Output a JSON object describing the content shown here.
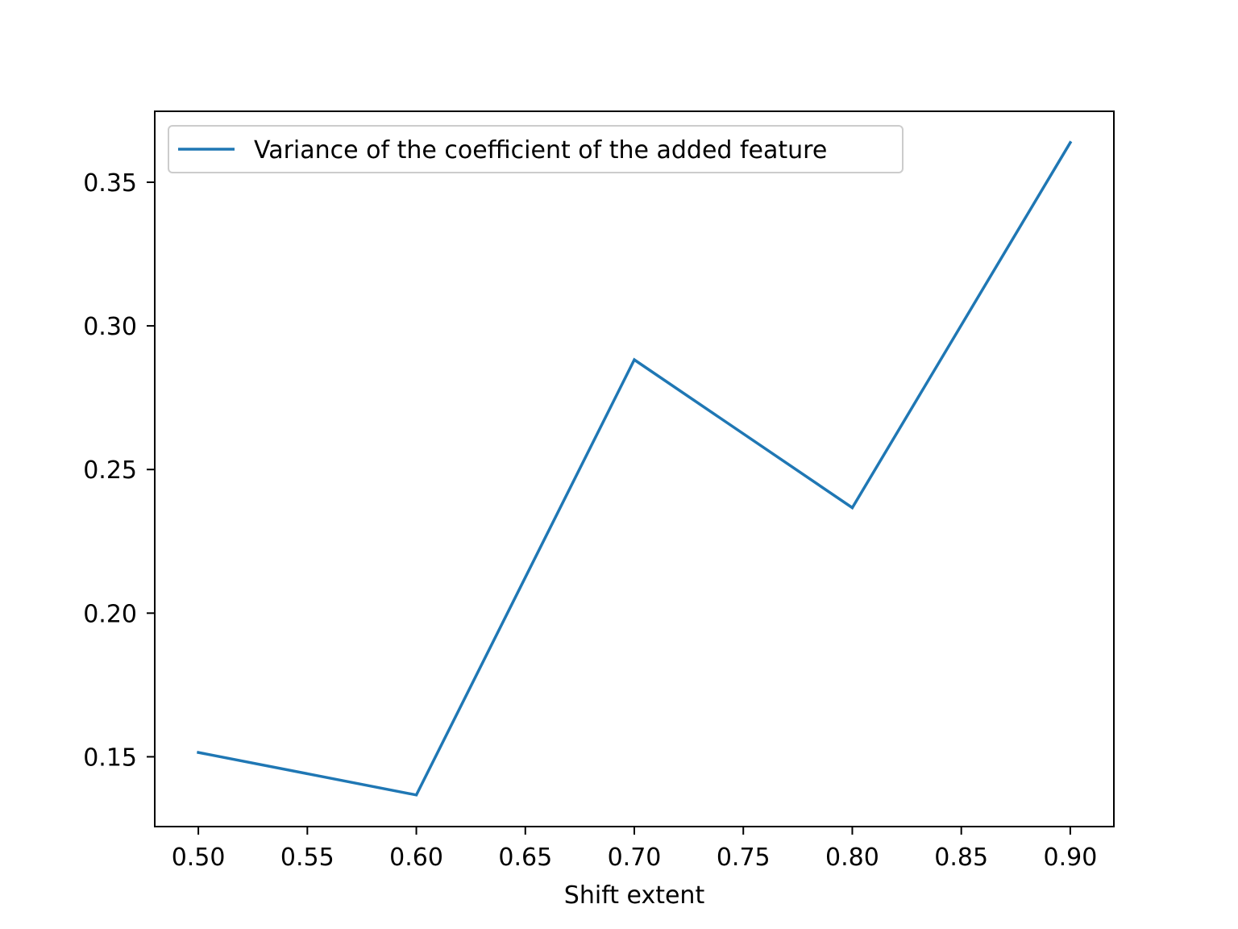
{
  "chart_data": {
    "type": "line",
    "title": "",
    "xlabel": "Shift extent",
    "ylabel": "",
    "x": [
      0.5,
      0.6,
      0.7,
      0.8,
      0.9
    ],
    "series": [
      {
        "name": "Variance of the coefficient of the added feature",
        "color": "#1f77b4",
        "values": [
          0.1515,
          0.1367,
          0.2882,
          0.2367,
          0.3638
        ]
      }
    ],
    "xlim": [
      0.48,
      0.92
    ],
    "ylim": [
      0.1257,
      0.3747
    ],
    "xticks": [
      0.5,
      0.55,
      0.6,
      0.65,
      0.7,
      0.75,
      0.8,
      0.85,
      0.9
    ],
    "xtick_labels": [
      "0.50",
      "0.55",
      "0.60",
      "0.65",
      "0.70",
      "0.75",
      "0.80",
      "0.85",
      "0.90"
    ],
    "yticks": [
      0.15,
      0.2,
      0.25,
      0.3,
      0.35
    ],
    "ytick_labels": [
      "0.15",
      "0.20",
      "0.25",
      "0.30",
      "0.35"
    ],
    "grid": false,
    "legend_position": "upper-left"
  }
}
